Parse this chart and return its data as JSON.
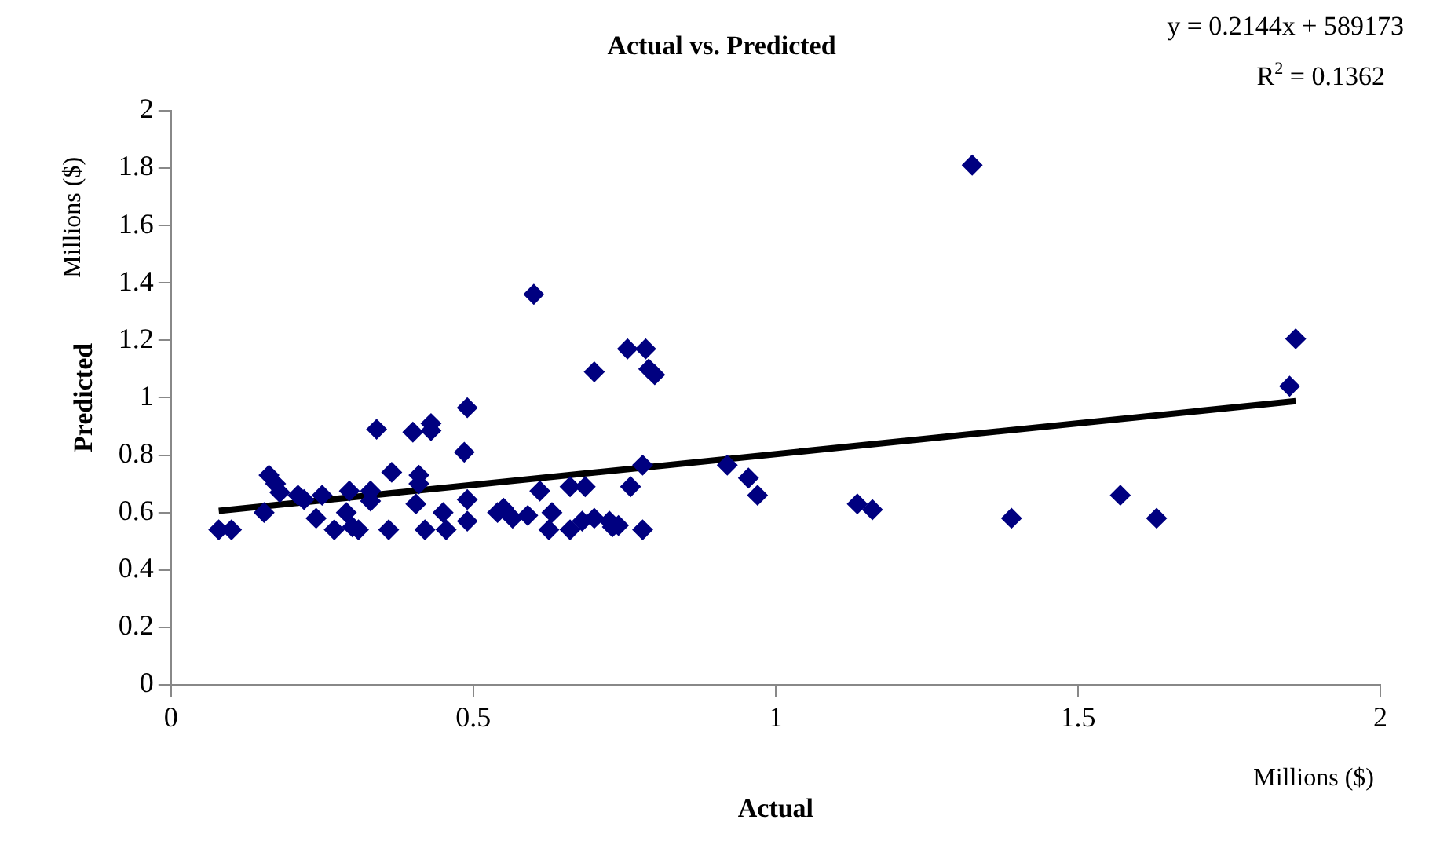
{
  "chart_data": {
    "type": "scatter",
    "title": "Actual vs. Predicted",
    "xlabel": "Actual",
    "ylabel": "Predicted",
    "annotations": [
      "y = 0.2144x + 589173",
      "R$^{2}$ = 0.1362",
      "Millions ($)",
      "Millions ($)"
    ],
    "xlim": [
      0,
      2
    ],
    "xticks": [
      0,
      0.5,
      1,
      1.5,
      2
    ],
    "ylim": [
      0,
      2
    ],
    "yticks": [
      0,
      0.2,
      0.4,
      0.6,
      0.8,
      1,
      1.2,
      1.4,
      1.6,
      1.8,
      2
    ],
    "grid": false,
    "legend": false,
    "series": [
      {
        "marker": "diamond",
        "color": "#000080",
        "x": [
          0.079,
          0.1,
          0.154,
          0.162,
          0.173,
          0.18,
          0.21,
          0.22,
          0.24,
          0.25,
          0.27,
          0.29,
          0.295,
          0.3,
          0.31,
          0.33,
          0.33,
          0.34,
          0.36,
          0.365,
          0.405,
          0.41,
          0.41,
          0.4,
          0.42,
          0.43,
          0.43,
          0.45,
          0.455,
          0.485,
          0.49,
          0.49,
          0.49,
          0.54,
          0.55,
          0.565,
          0.59,
          0.6,
          0.61,
          0.625,
          0.63,
          0.66,
          0.66,
          0.685,
          0.68,
          0.7,
          0.7,
          0.725,
          0.73,
          0.74,
          0.755,
          0.76,
          0.78,
          0.78,
          0.785,
          0.79,
          0.8,
          0.92,
          0.955,
          0.97,
          1.135,
          1.16,
          1.325,
          1.39,
          1.57,
          1.63,
          1.85,
          1.86
        ],
        "values": [
          0.54,
          0.54,
          0.6,
          0.73,
          0.7,
          0.67,
          0.66,
          0.645,
          0.58,
          0.66,
          0.54,
          0.6,
          0.675,
          0.55,
          0.54,
          0.64,
          0.675,
          0.89,
          0.54,
          0.74,
          0.63,
          0.7,
          0.73,
          0.88,
          0.54,
          0.885,
          0.91,
          0.6,
          0.54,
          0.81,
          0.965,
          0.645,
          0.57,
          0.6,
          0.615,
          0.58,
          0.59,
          1.36,
          0.675,
          0.54,
          0.6,
          0.54,
          0.69,
          0.69,
          0.57,
          0.58,
          1.09,
          0.57,
          0.55,
          0.555,
          1.17,
          0.69,
          0.765,
          0.54,
          1.17,
          1.1,
          1.08,
          0.765,
          0.72,
          0.66,
          0.63,
          0.61,
          1.81,
          0.58,
          0.66,
          0.58,
          1.04,
          1.205
        ]
      },
      {
        "type": "line",
        "marker": "none",
        "color": "#000000",
        "x": [
          0.079,
          1.86
        ],
        "values": [
          0.606,
          0.988
        ]
      }
    ]
  }
}
